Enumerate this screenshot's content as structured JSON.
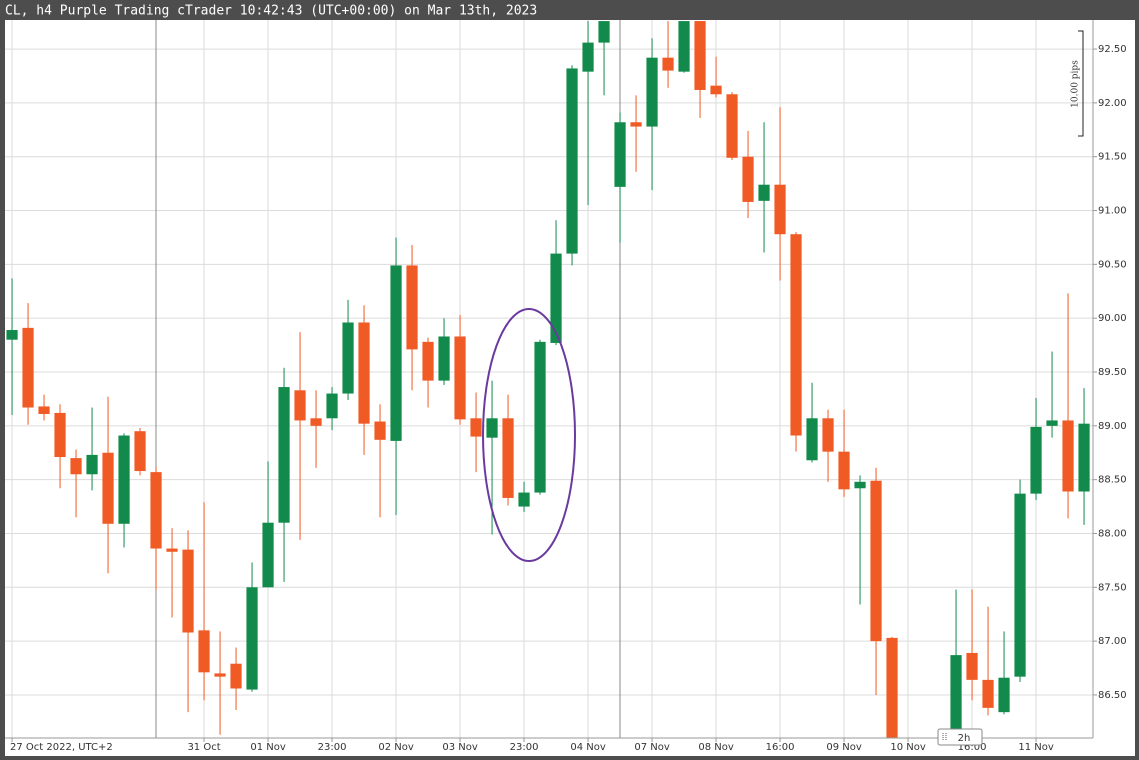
{
  "chart_data": {
    "type": "candlestick",
    "title": "CL, h4 Purple Trading cTrader 10:42:43 (UTC+00:00) on Mar 13th, 2023",
    "up_color": "#128a4c",
    "down_color": "#f05a24",
    "grid": true,
    "annotations": [
      "10.00 pips"
    ],
    "timeframe": "2h",
    "xlim": [
      -0.44,
      67.56
    ],
    "ylim": [
      86.1,
      92.77
    ],
    "xticks": [
      {
        "value": 0,
        "label": "27 Oct 2022, UTC+2"
      },
      {
        "value": 12,
        "label": "31 Oct"
      },
      {
        "value": 16,
        "label": "01 Nov"
      },
      {
        "value": 20,
        "label": "23:00"
      },
      {
        "value": 24,
        "label": "02 Nov"
      },
      {
        "value": 28,
        "label": "03 Nov"
      },
      {
        "value": 32,
        "label": "23:00"
      },
      {
        "value": 36,
        "label": "04 Nov"
      },
      {
        "value": 40,
        "label": "07 Nov"
      },
      {
        "value": 44,
        "label": "08 Nov"
      },
      {
        "value": 48,
        "label": "16:00"
      },
      {
        "value": 52,
        "label": "09 Nov"
      },
      {
        "value": 56,
        "label": "10 Nov"
      },
      {
        "value": 60,
        "label": "16:00"
      },
      {
        "value": 64,
        "label": "11 Nov"
      }
    ],
    "yticks": [
      {
        "value": 86.5,
        "label": "86.50"
      },
      {
        "value": 87,
        "label": "87.00"
      },
      {
        "value": 87.5,
        "label": "87.50"
      },
      {
        "value": 88,
        "label": "88.00"
      },
      {
        "value": 88.5,
        "label": "88.50"
      },
      {
        "value": 89,
        "label": "89.00"
      },
      {
        "value": 89.5,
        "label": "89.50"
      },
      {
        "value": 90,
        "label": "90.00"
      },
      {
        "value": 90.5,
        "label": "90.50"
      },
      {
        "value": 91,
        "label": "91.00"
      },
      {
        "value": 91.5,
        "label": "91.50"
      },
      {
        "value": 92,
        "label": "92.00"
      },
      {
        "value": 92.5,
        "label": "92.50"
      }
    ],
    "x": [
      0,
      1,
      2,
      3,
      4,
      5,
      6,
      7,
      8,
      9,
      10,
      11,
      12,
      13,
      14,
      15,
      16,
      17,
      18,
      19,
      20,
      21,
      22,
      23,
      24,
      25,
      26,
      27,
      28,
      29,
      30,
      31,
      32,
      33,
      34,
      35,
      36,
      37,
      38,
      39,
      40,
      41,
      42,
      43,
      44,
      45,
      46,
      47,
      48,
      49,
      50,
      51,
      52,
      53,
      54,
      55,
      59,
      60,
      61,
      62,
      63,
      64,
      65,
      66,
      67
    ],
    "open": [
      89.8,
      89.91,
      89.18,
      89.12,
      88.7,
      88.55,
      88.75,
      88.09,
      88.95,
      88.57,
      87.86,
      87.85,
      87.1,
      86.7,
      86.79,
      86.55,
      87.5,
      88.1,
      89.33,
      89.07,
      89.07,
      89.3,
      89.96,
      89.04,
      88.86,
      90.49,
      89.78,
      89.42,
      89.83,
      89.07,
      88.89,
      89.07,
      88.25,
      88.38,
      89.77,
      90.6,
      92.29,
      92.56,
      91.22,
      91.82,
      91.78,
      92.42,
      92.29,
      92.76,
      92.16,
      92.08,
      91.5,
      91.09,
      91.24,
      90.78,
      88.68,
      89.07,
      88.76,
      88.42,
      88.49,
      87.03,
      86.16,
      86.89,
      86.64,
      86.34,
      86.67,
      88.37,
      89.0,
      89.05,
      88.39
    ],
    "high": [
      90.37,
      90.14,
      89.29,
      89.2,
      88.78,
      89.17,
      89.27,
      88.93,
      88.98,
      88.62,
      88.05,
      88.03,
      88.29,
      87.09,
      86.94,
      87.73,
      88.67,
      89.54,
      89.87,
      89.33,
      89.36,
      90.17,
      90.12,
      89.2,
      90.75,
      90.68,
      89.82,
      90.0,
      90.03,
      89.31,
      89.42,
      89.29,
      88.48,
      89.8,
      90.91,
      92.35,
      92.76,
      92.76,
      91.91,
      92.07,
      92.6,
      92.76,
      92.76,
      92.76,
      92.43,
      92.1,
      91.74,
      91.82,
      91.96,
      90.8,
      89.4,
      89.15,
      89.15,
      88.54,
      88.61,
      87.04,
      87.48,
      87.48,
      87.32,
      87.09,
      88.5,
      89.26,
      89.69,
      90.23,
      89.35
    ],
    "low": [
      89.1,
      89.01,
      89.05,
      88.42,
      88.15,
      88.4,
      87.63,
      87.87,
      88.54,
      87.48,
      87.22,
      86.34,
      86.45,
      86.13,
      86.36,
      86.53,
      87.5,
      87.55,
      87.94,
      88.61,
      88.96,
      89.24,
      88.73,
      88.15,
      88.17,
      89.33,
      89.17,
      89.38,
      89.01,
      88.57,
      87.99,
      88.26,
      88.2,
      88.36,
      89.75,
      90.49,
      91.05,
      92.07,
      90.7,
      91.36,
      91.19,
      92.14,
      92.28,
      91.86,
      92.05,
      91.47,
      90.93,
      90.61,
      90.35,
      88.76,
      88.66,
      88.48,
      88.34,
      87.34,
      86.5,
      86.1,
      86.1,
      86.45,
      86.31,
      86.32,
      86.62,
      88.31,
      88.89,
      88.14,
      88.08
    ],
    "close": [
      89.89,
      89.17,
      89.11,
      88.71,
      88.55,
      88.73,
      88.09,
      88.91,
      88.58,
      87.86,
      87.83,
      87.08,
      86.71,
      86.67,
      86.56,
      87.5,
      88.1,
      89.36,
      89.05,
      89.0,
      89.3,
      89.96,
      89.02,
      88.87,
      90.49,
      89.71,
      89.42,
      89.83,
      89.06,
      88.9,
      89.07,
      88.33,
      88.38,
      89.78,
      90.6,
      92.32,
      92.56,
      92.76,
      91.82,
      91.78,
      92.42,
      92.3,
      92.76,
      92.12,
      92.08,
      91.49,
      91.08,
      91.24,
      90.78,
      88.91,
      89.07,
      88.76,
      88.41,
      88.48,
      87.0,
      86.1,
      86.87,
      86.64,
      86.38,
      86.66,
      88.37,
      88.99,
      89.05,
      88.39,
      89.02
    ]
  }
}
